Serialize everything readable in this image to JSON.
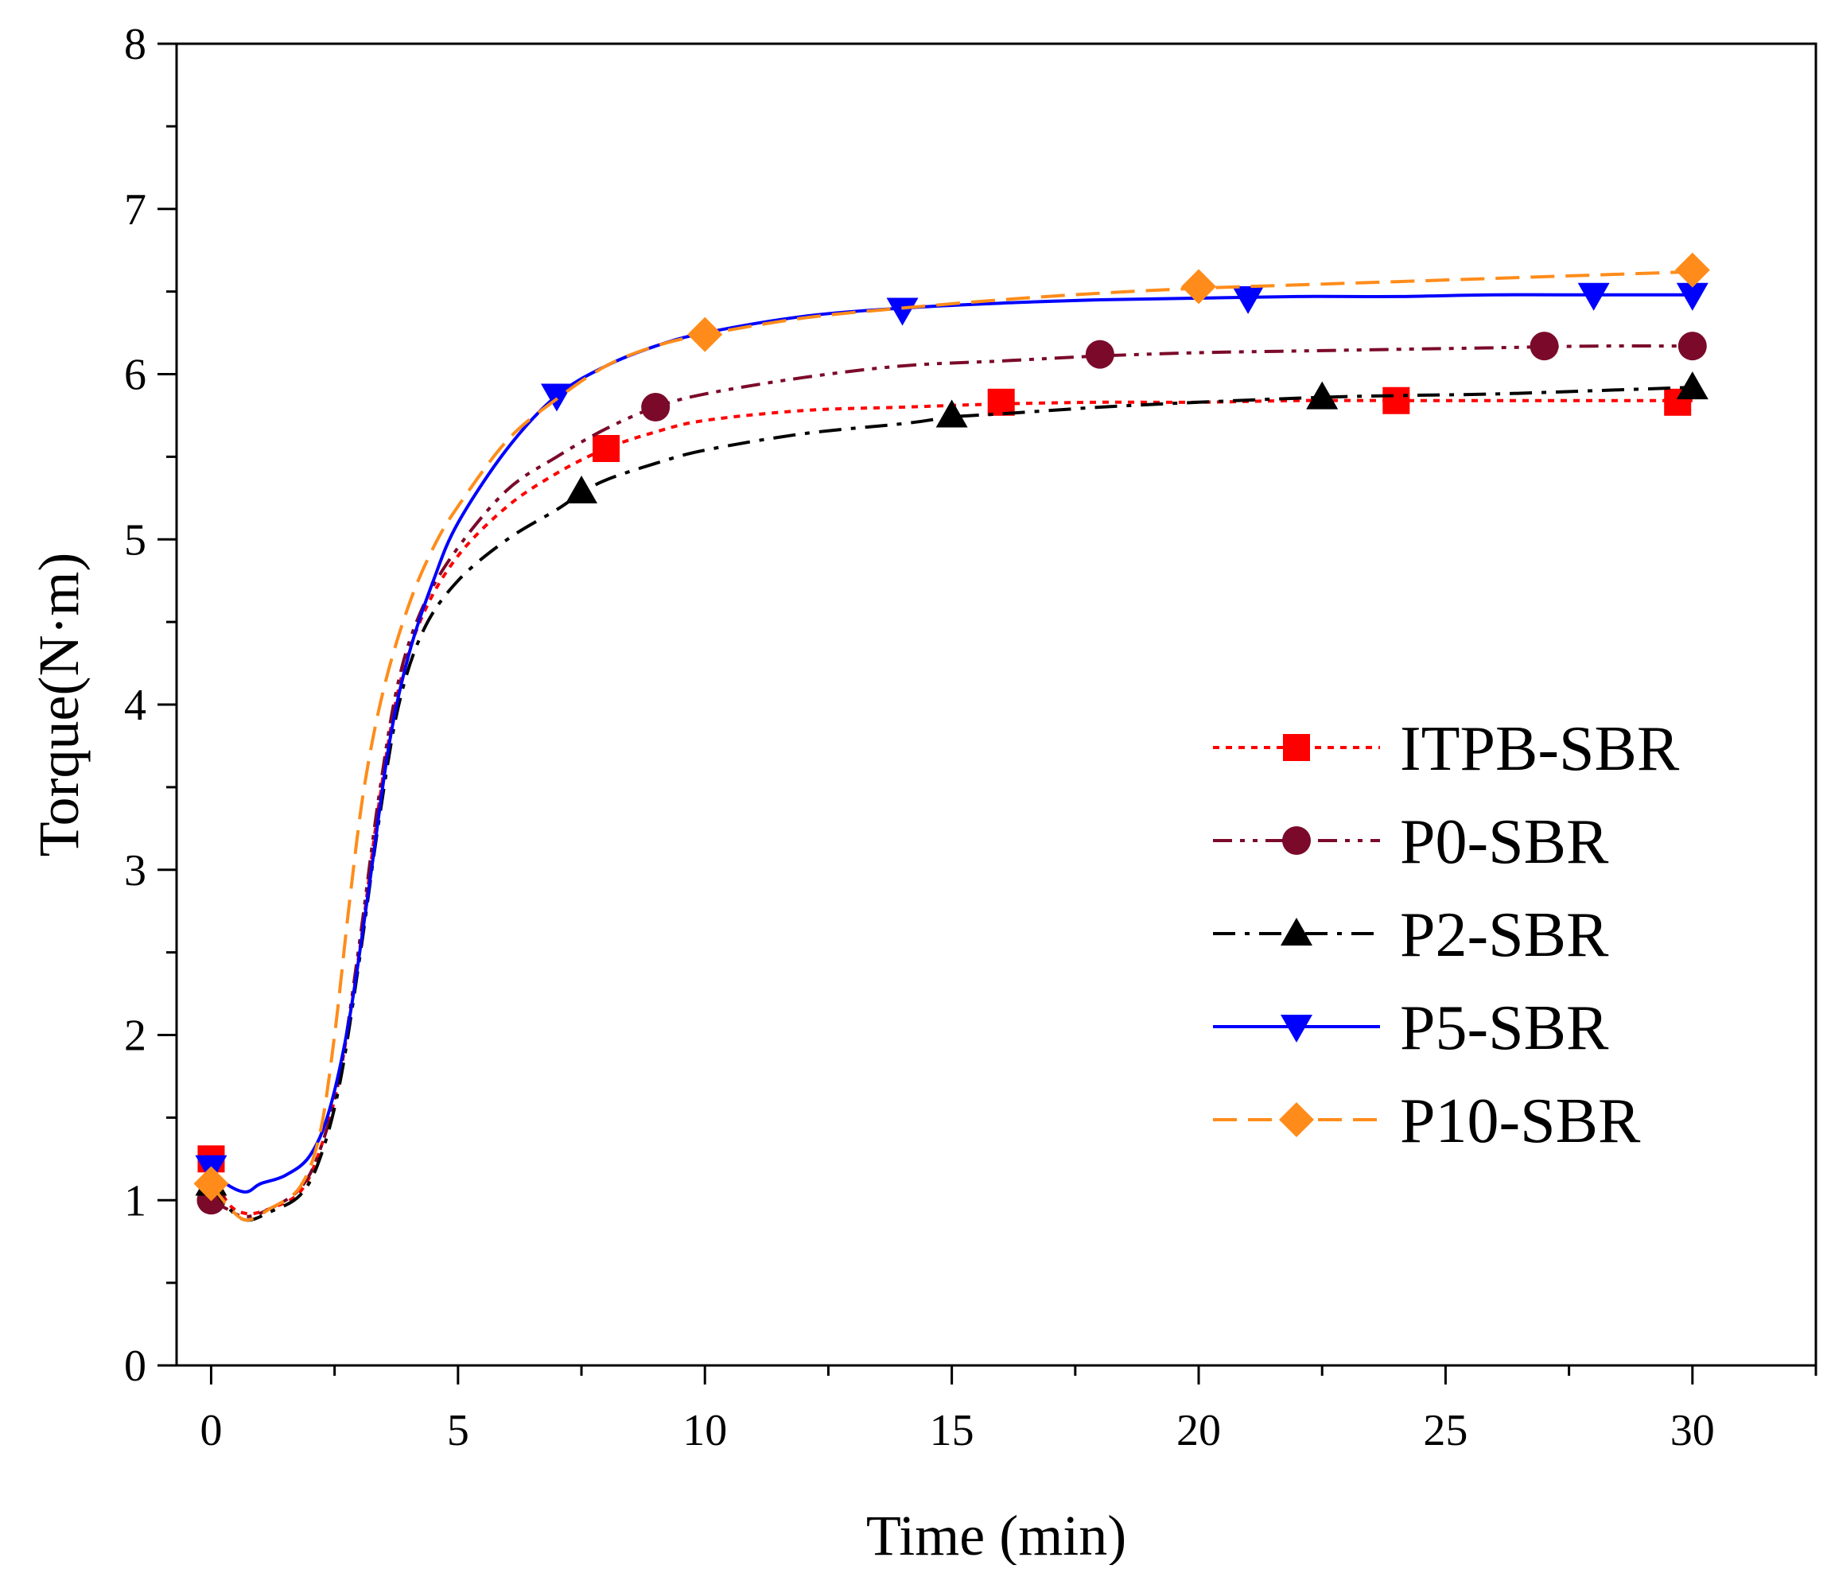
{
  "chart_data": {
    "type": "line",
    "xlabel": "Time (min)",
    "ylabel": "Torque(N·m)",
    "xlim": [
      -0.7,
      32.5
    ],
    "ylim": [
      0,
      8
    ],
    "xticks": [
      0,
      5,
      10,
      15,
      20,
      25,
      30
    ],
    "yticks": [
      0,
      1,
      2,
      3,
      4,
      5,
      6,
      7,
      8
    ],
    "grid": false,
    "legend_position": "center-right",
    "series": [
      {
        "name": "ITPB-SBR",
        "color": "#ff0000",
        "line_style": "dotted",
        "marker": "square",
        "curve": [
          [
            0,
            1.25
          ],
          [
            0.3,
            1.0
          ],
          [
            0.7,
            0.92
          ],
          [
            1.2,
            0.95
          ],
          [
            1.8,
            1.05
          ],
          [
            2.2,
            1.3
          ],
          [
            2.6,
            1.75
          ],
          [
            3.0,
            2.5
          ],
          [
            3.4,
            3.4
          ],
          [
            3.8,
            4.1
          ],
          [
            4.3,
            4.55
          ],
          [
            5,
            4.9
          ],
          [
            6,
            5.2
          ],
          [
            7,
            5.4
          ],
          [
            8,
            5.55
          ],
          [
            9,
            5.65
          ],
          [
            10,
            5.72
          ],
          [
            12,
            5.78
          ],
          [
            14,
            5.8
          ],
          [
            16,
            5.82
          ],
          [
            18,
            5.83
          ],
          [
            20,
            5.83
          ],
          [
            22,
            5.84
          ],
          [
            24,
            5.84
          ],
          [
            26,
            5.84
          ],
          [
            28,
            5.84
          ],
          [
            30,
            5.84
          ]
        ],
        "markers": [
          [
            0,
            1.25
          ],
          [
            8,
            5.55
          ],
          [
            16,
            5.83
          ],
          [
            24,
            5.84
          ],
          [
            29.7,
            5.83
          ]
        ]
      },
      {
        "name": "P0-SBR",
        "color": "#7b0a2a",
        "line_style": "dash-dot-dot",
        "marker": "circle",
        "curve": [
          [
            0,
            1.0
          ],
          [
            0.3,
            0.95
          ],
          [
            0.7,
            0.9
          ],
          [
            1.2,
            0.95
          ],
          [
            1.8,
            1.07
          ],
          [
            2.2,
            1.3
          ],
          [
            2.6,
            1.75
          ],
          [
            3.0,
            2.55
          ],
          [
            3.4,
            3.45
          ],
          [
            3.8,
            4.15
          ],
          [
            4.3,
            4.6
          ],
          [
            5,
            4.95
          ],
          [
            6,
            5.3
          ],
          [
            7,
            5.5
          ],
          [
            8,
            5.67
          ],
          [
            9,
            5.8
          ],
          [
            10,
            5.88
          ],
          [
            12,
            5.98
          ],
          [
            14,
            6.05
          ],
          [
            16,
            6.08
          ],
          [
            18,
            6.11
          ],
          [
            20,
            6.13
          ],
          [
            22,
            6.14
          ],
          [
            24,
            6.15
          ],
          [
            26,
            6.16
          ],
          [
            28,
            6.17
          ],
          [
            30,
            6.17
          ]
        ],
        "markers": [
          [
            0,
            1.0
          ],
          [
            9,
            5.8
          ],
          [
            18,
            6.12
          ],
          [
            27,
            6.17
          ],
          [
            30,
            6.17
          ]
        ]
      },
      {
        "name": "P2-SBR",
        "color": "#000000",
        "line_style": "dash-dot",
        "marker": "triangle-up",
        "curve": [
          [
            0,
            1.1
          ],
          [
            0.3,
            0.97
          ],
          [
            0.7,
            0.88
          ],
          [
            1.2,
            0.93
          ],
          [
            1.8,
            1.03
          ],
          [
            2.2,
            1.25
          ],
          [
            2.6,
            1.7
          ],
          [
            3.0,
            2.45
          ],
          [
            3.4,
            3.3
          ],
          [
            3.8,
            4.0
          ],
          [
            4.3,
            4.45
          ],
          [
            5,
            4.75
          ],
          [
            6,
            5.0
          ],
          [
            7,
            5.18
          ],
          [
            7.5,
            5.28
          ],
          [
            8,
            5.36
          ],
          [
            9,
            5.46
          ],
          [
            10,
            5.54
          ],
          [
            12,
            5.64
          ],
          [
            14,
            5.7
          ],
          [
            15,
            5.74
          ],
          [
            16,
            5.76
          ],
          [
            18,
            5.8
          ],
          [
            20,
            5.83
          ],
          [
            22.5,
            5.86
          ],
          [
            24,
            5.87
          ],
          [
            26,
            5.88
          ],
          [
            28,
            5.9
          ],
          [
            30,
            5.92
          ]
        ],
        "markers": [
          [
            0,
            1.1
          ],
          [
            7.5,
            5.29
          ],
          [
            15,
            5.75
          ],
          [
            22.5,
            5.86
          ],
          [
            30,
            5.92
          ]
        ]
      },
      {
        "name": "P5-SBR",
        "color": "#0000ff",
        "line_style": "solid",
        "marker": "triangle-down",
        "curve": [
          [
            0,
            1.2
          ],
          [
            0.3,
            1.1
          ],
          [
            0.7,
            1.05
          ],
          [
            1.0,
            1.1
          ],
          [
            1.5,
            1.15
          ],
          [
            2.0,
            1.27
          ],
          [
            2.4,
            1.55
          ],
          [
            2.8,
            2.1
          ],
          [
            3.2,
            2.9
          ],
          [
            3.6,
            3.75
          ],
          [
            4.0,
            4.3
          ],
          [
            4.5,
            4.75
          ],
          [
            5,
            5.1
          ],
          [
            6,
            5.55
          ],
          [
            7,
            5.87
          ],
          [
            8,
            6.05
          ],
          [
            9,
            6.17
          ],
          [
            10,
            6.25
          ],
          [
            12,
            6.35
          ],
          [
            14,
            6.4
          ],
          [
            16,
            6.43
          ],
          [
            18,
            6.45
          ],
          [
            20,
            6.46
          ],
          [
            22,
            6.47
          ],
          [
            24,
            6.47
          ],
          [
            26,
            6.48
          ],
          [
            28,
            6.48
          ],
          [
            30,
            6.48
          ]
        ],
        "markers": [
          [
            0,
            1.2
          ],
          [
            7,
            5.87
          ],
          [
            14,
            6.39
          ],
          [
            21,
            6.46
          ],
          [
            28,
            6.48
          ],
          [
            30,
            6.48
          ]
        ]
      },
      {
        "name": "P10-SBR",
        "color": "#ff8c1a",
        "line_style": "dashed",
        "marker": "diamond",
        "curve": [
          [
            0,
            1.1
          ],
          [
            0.3,
            0.98
          ],
          [
            0.7,
            0.88
          ],
          [
            1.2,
            0.95
          ],
          [
            1.8,
            1.08
          ],
          [
            2.2,
            1.4
          ],
          [
            2.5,
            2.0
          ],
          [
            2.8,
            2.8
          ],
          [
            3.1,
            3.5
          ],
          [
            3.5,
            4.1
          ],
          [
            4.0,
            4.6
          ],
          [
            4.5,
            4.95
          ],
          [
            5,
            5.2
          ],
          [
            6,
            5.6
          ],
          [
            7,
            5.85
          ],
          [
            8,
            6.05
          ],
          [
            9,
            6.17
          ],
          [
            10,
            6.24
          ],
          [
            12,
            6.34
          ],
          [
            14,
            6.4
          ],
          [
            16,
            6.45
          ],
          [
            18,
            6.49
          ],
          [
            20,
            6.52
          ],
          [
            22,
            6.54
          ],
          [
            24,
            6.56
          ],
          [
            26,
            6.58
          ],
          [
            28,
            6.6
          ],
          [
            30,
            6.62
          ]
        ],
        "markers": [
          [
            0,
            1.1
          ],
          [
            10,
            6.24
          ],
          [
            20,
            6.53
          ],
          [
            30,
            6.63
          ]
        ]
      }
    ]
  }
}
